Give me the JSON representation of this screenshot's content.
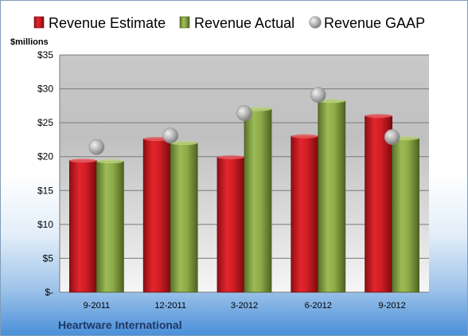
{
  "chart_data": {
    "type": "bar",
    "title": "",
    "subtitle": "",
    "company": "Heartware International",
    "unit_label": "$millions",
    "categories": [
      "9-2011",
      "12-2011",
      "3-2012",
      "6-2012",
      "9-2012"
    ],
    "series": [
      {
        "name": "Revenue Estimate",
        "kind": "bar",
        "color": "#c0141b",
        "values": [
          19.4,
          22.6,
          19.9,
          23.0,
          26.0
        ]
      },
      {
        "name": "Revenue Actual",
        "kind": "bar",
        "color": "#7d9a3c",
        "values": [
          19.3,
          22.0,
          27.0,
          28.2,
          22.7
        ]
      },
      {
        "name": "Revenue GAAP",
        "kind": "marker",
        "color": "#a8a8a8",
        "values": [
          21.4,
          23.1,
          26.4,
          29.1,
          22.9
        ]
      }
    ],
    "ylim": [
      0,
      35
    ],
    "yticks": [
      0,
      5,
      10,
      15,
      20,
      25,
      30,
      35
    ],
    "ytick_labels": [
      "$-",
      "$5",
      "$10",
      "$15",
      "$20",
      "$25",
      "$30",
      "$35"
    ],
    "grid": true,
    "legend_position": "top"
  }
}
